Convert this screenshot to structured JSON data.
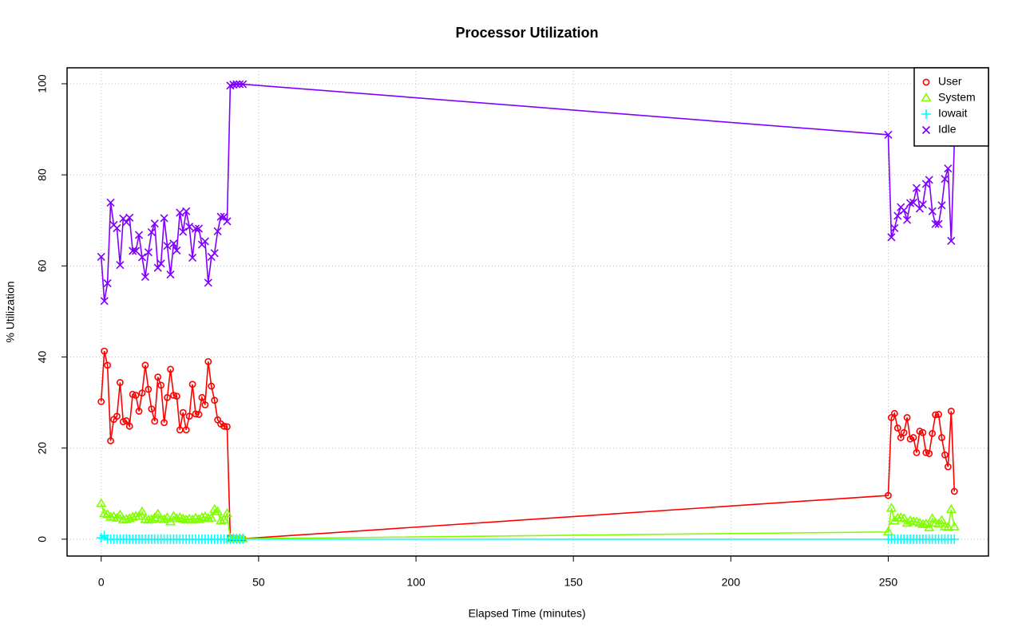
{
  "chart_data": {
    "type": "line",
    "title": "Processor Utilization",
    "x_label": "Elapsed Time (minutes)",
    "y_label": "% Utilization",
    "x": [
      0,
      1,
      2,
      3,
      4,
      5,
      6,
      7,
      8,
      9,
      10,
      11,
      12,
      13,
      14,
      15,
      16,
      17,
      18,
      19,
      20,
      21,
      22,
      23,
      24,
      25,
      26,
      27,
      28,
      29,
      30,
      31,
      32,
      33,
      34,
      35,
      36,
      37,
      38,
      39,
      40,
      41,
      42,
      43,
      44,
      45,
      250,
      251,
      252,
      253,
      254,
      255,
      256,
      257,
      258,
      259,
      260,
      261,
      262,
      263,
      264,
      265,
      266,
      267,
      268,
      269,
      270,
      271
    ],
    "series": [
      {
        "name": "User",
        "color": "#ff0000",
        "marker": "circle",
        "values": [
          30.2,
          41.3,
          38.2,
          21.6,
          26.3,
          27,
          34.4,
          25.8,
          26,
          24.8,
          31.8,
          31.6,
          28.1,
          32.1,
          38.2,
          32.9,
          28.6,
          25.9,
          35.6,
          33.8,
          25.6,
          31.1,
          37.3,
          31.6,
          31.4,
          24,
          27.8,
          24,
          27,
          34,
          27.5,
          27.4,
          31.1,
          29.5,
          39,
          33.6,
          30.5,
          26.2,
          25.3,
          24.8,
          24.7,
          0.3,
          0.2,
          0.1,
          0.1,
          0.1,
          9.6,
          26.7,
          27.6,
          24.4,
          22.3,
          23.4,
          26.7,
          22,
          22.3,
          19,
          23.7,
          23.4,
          19,
          18.8,
          23.2,
          27.3,
          27.4,
          22.3,
          18.5,
          15.9,
          28.1,
          10.5
        ]
      },
      {
        "name": "System",
        "color": "#80ff00",
        "marker": "triangle",
        "values": [
          7.8,
          5.6,
          5.4,
          4.8,
          4.9,
          4.6,
          5.3,
          4.2,
          4.3,
          4.5,
          4.8,
          5,
          5,
          6,
          4.3,
          4.2,
          4.3,
          4.7,
          5.5,
          4.4,
          4.3,
          4.7,
          3.8,
          5,
          4.5,
          4.7,
          4.4,
          4.2,
          4.4,
          4.2,
          4.6,
          4.3,
          4.7,
          4.9,
          4.5,
          4.6,
          6.5,
          6,
          4,
          4.2,
          5.6,
          0.1,
          0.1,
          0.1,
          0.1,
          0.1,
          1.6,
          6.8,
          4,
          4.6,
          4.7,
          4.5,
          3.5,
          4,
          3.8,
          3.8,
          3.5,
          3.2,
          3.3,
          2.5,
          4.5,
          3.5,
          3.3,
          4.1,
          2.7,
          2.6,
          6.5,
          2.7
        ]
      },
      {
        "name": "Iowait",
        "color": "#00ffff",
        "marker": "plus",
        "values": [
          0.3,
          0.8,
          0,
          0,
          0,
          0,
          0,
          0,
          0,
          0,
          0,
          0,
          0,
          0,
          0,
          0,
          0,
          0,
          0,
          0,
          0,
          0,
          0,
          0,
          0,
          0,
          0,
          0,
          0,
          0,
          0,
          0,
          0,
          0,
          0,
          0,
          0,
          0,
          0,
          0,
          0,
          0,
          0,
          0,
          0,
          0,
          0,
          0,
          0,
          0,
          0,
          0,
          0,
          0,
          0,
          0,
          0,
          0,
          0,
          0,
          0,
          0,
          0,
          0,
          0,
          0,
          0,
          0
        ]
      },
      {
        "name": "Idle",
        "color": "#8000ff",
        "marker": "x",
        "values": [
          62,
          52.3,
          56.2,
          73.9,
          69,
          68.3,
          60.2,
          70.4,
          69.6,
          70.6,
          63.3,
          63.3,
          66.8,
          61.9,
          57.6,
          63,
          67.4,
          69.3,
          59.6,
          60.5,
          70.5,
          64.4,
          58.1,
          64.9,
          63.4,
          71.7,
          67.5,
          72,
          68.6,
          61.8,
          68.2,
          68.2,
          64.7,
          65.4,
          56.3,
          62,
          62.8,
          67.6,
          70.8,
          70.8,
          69.8,
          99.6,
          99.8,
          99.9,
          99.9,
          99.9,
          88.8,
          66.3,
          68.3,
          71,
          72.9,
          72.2,
          70.1,
          73.8,
          73.9,
          77.1,
          72.6,
          73.5,
          78,
          78.9,
          72,
          69.2,
          69.2,
          73.3,
          79.1,
          81.4,
          65.5,
          87
        ]
      }
    ],
    "xlim": [
      -10.84,
      281.84
    ],
    "xticks": [
      0,
      50,
      100,
      150,
      200,
      250
    ],
    "ylim": [
      -3.7,
      103.5
    ],
    "yticks": [
      0,
      20,
      40,
      60,
      80,
      100
    ],
    "grid": true,
    "legend": "topright"
  }
}
